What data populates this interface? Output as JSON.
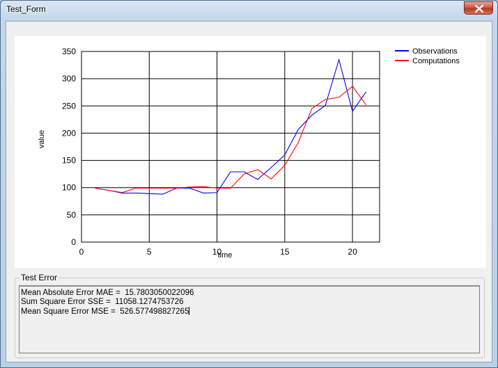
{
  "window": {
    "title": "Test_Form"
  },
  "chart_data": {
    "type": "line",
    "xlabel": "time",
    "ylabel": "value",
    "xlim": [
      0,
      22
    ],
    "ylim": [
      0,
      350
    ],
    "xticks": [
      0,
      5,
      10,
      15,
      20
    ],
    "yticks": [
      0,
      50,
      100,
      150,
      200,
      250,
      300,
      350
    ],
    "grid": true,
    "legend_position": "top-right",
    "series": [
      {
        "name": "Observations",
        "color": "#0000ff",
        "x": [
          1,
          2,
          3,
          4,
          5,
          6,
          7,
          8,
          9,
          10,
          11,
          12,
          13,
          14,
          15,
          16,
          17,
          18,
          19,
          20,
          21
        ],
        "values": [
          99,
          95,
          90,
          90,
          89,
          88,
          99,
          99,
          90,
          91,
          129,
          129,
          115,
          137,
          160,
          207,
          233,
          251,
          335,
          240,
          276
        ]
      },
      {
        "name": "Computations",
        "color": "#ff0000",
        "x": [
          1,
          2,
          3,
          4,
          5,
          6,
          7,
          8,
          9,
          10,
          11,
          12,
          13,
          14,
          15,
          16,
          17,
          18,
          19,
          20,
          21
        ],
        "values": [
          99,
          95,
          91,
          99,
          99,
          99,
          99,
          101,
          102,
          99,
          99,
          125,
          133,
          116,
          141,
          183,
          245,
          262,
          266,
          286,
          252
        ]
      }
    ]
  },
  "test_error": {
    "label": "Test Error",
    "lines": [
      "Mean Absolute Error MAE =  15.7803050022096",
      "Sum Square Error SSE =  11058.1274753726",
      "Mean Square Error MSE =  526.577498827265"
    ]
  }
}
